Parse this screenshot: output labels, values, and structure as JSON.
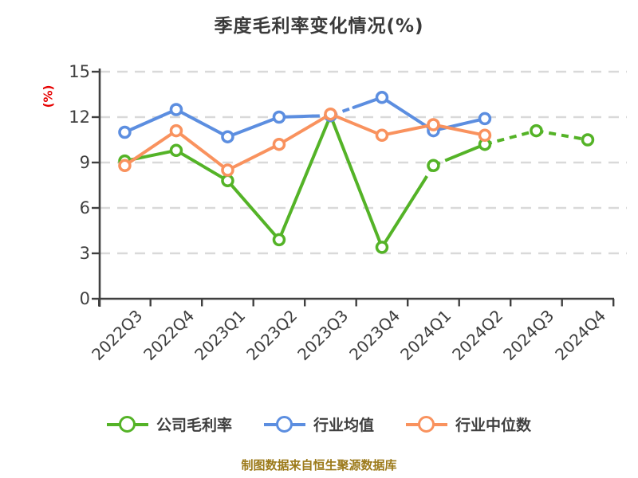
{
  "chart_data": {
    "type": "line",
    "title": "季度毛利率变化情况(%)",
    "ylabel": "(%)",
    "footer": "制图数据来自恒生聚源数据库",
    "categories": [
      "2022Q3",
      "2022Q4",
      "2023Q1",
      "2023Q2",
      "2023Q3",
      "2023Q4",
      "2024Q1",
      "2024Q2",
      "2024Q3",
      "2024Q4"
    ],
    "ylim": [
      0,
      15
    ],
    "yticks": [
      0,
      3,
      6,
      9,
      12,
      15
    ],
    "grid": "horizontal-dashed",
    "legend_position": "bottom",
    "colors": {
      "axis": "#404040",
      "grid": "#d9d9d9",
      "title": "#3a3a3a",
      "y_unit_label": "#e60000",
      "footer": "#9c7a1a",
      "marker_fill": "#ffffff"
    },
    "series": [
      {
        "key": "company-gross-margin",
        "name": "公司毛利率",
        "color": "#54b327",
        "values": [
          9.1,
          9.8,
          7.8,
          3.9,
          12.1,
          3.4,
          8.8,
          10.2,
          11.1,
          10.5
        ],
        "points": [
          [
            0,
            9.1
          ],
          [
            1,
            9.8
          ],
          [
            2,
            7.8
          ],
          [
            3,
            3.9
          ],
          [
            4,
            12.1
          ],
          [
            5,
            3.4
          ],
          [
            5.8,
            7.7
          ],
          [
            6,
            8.8
          ],
          [
            6.35,
            9.3
          ],
          [
            7,
            10.2
          ],
          [
            8,
            11.1
          ],
          [
            9,
            10.5
          ]
        ],
        "dashed_segments": [
          6,
          7,
          9,
          10
        ]
      },
      {
        "key": "industry-average",
        "name": "行业均值",
        "color": "#5c8ee0",
        "values": [
          11.0,
          12.5,
          10.7,
          12.0,
          12.1,
          13.3,
          11.1,
          11.9,
          null,
          null
        ],
        "points": [
          [
            0,
            11.0
          ],
          [
            1,
            12.5
          ],
          [
            2,
            10.7
          ],
          [
            3,
            12.0
          ],
          [
            3.65,
            12.07
          ],
          [
            4,
            12.1
          ],
          [
            4.45,
            12.64
          ],
          [
            5,
            13.3
          ],
          [
            6,
            11.1
          ],
          [
            7,
            11.9
          ]
        ],
        "dashed_segments": [
          4,
          5
        ]
      },
      {
        "key": "industry-median",
        "name": "行业中位数",
        "color": "#f9925e",
        "values": [
          8.8,
          11.1,
          8.5,
          10.2,
          12.2,
          10.8,
          11.5,
          10.8,
          null,
          null
        ],
        "points": [
          [
            0,
            8.8
          ],
          [
            1,
            11.1
          ],
          [
            2,
            8.5
          ],
          [
            3,
            10.2
          ],
          [
            4,
            12.2
          ],
          [
            5,
            10.8
          ],
          [
            6,
            11.5
          ],
          [
            7,
            10.8
          ]
        ],
        "dashed_segments": []
      }
    ]
  }
}
